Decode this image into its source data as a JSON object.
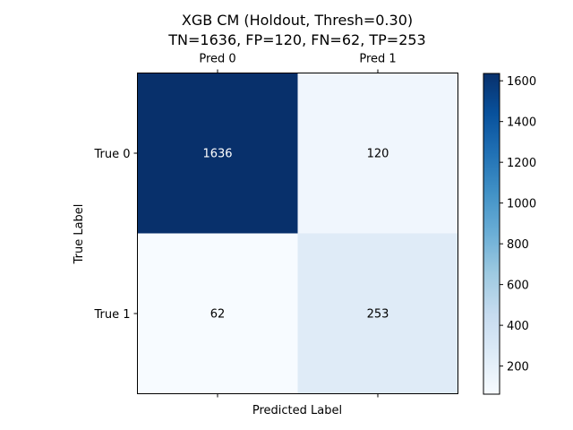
{
  "chart_data": {
    "type": "heatmap",
    "title": "XGB CM (Holdout, Thresh=0.30)",
    "subtitle": "TN=1636, FP=120, FN=62, TP=253",
    "xlabel": "Predicted Label",
    "ylabel": "True Label",
    "x_categories": [
      "Pred 0",
      "Pred 1"
    ],
    "y_categories": [
      "True 0",
      "True 1"
    ],
    "values": [
      [
        1636,
        120
      ],
      [
        62,
        253
      ]
    ],
    "colormap": "Blues",
    "colorbar": {
      "min": 62,
      "max": 1636,
      "ticks": [
        200,
        400,
        600,
        800,
        1000,
        1200,
        1400,
        1600
      ]
    },
    "grid": false
  }
}
